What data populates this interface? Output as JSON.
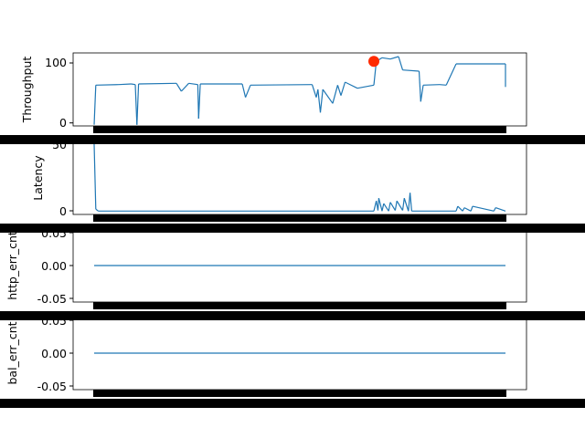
{
  "colors": {
    "line": "#1f77b4",
    "marker": "#ff2a00",
    "axes": "#000000",
    "background": "#ffffff"
  },
  "chart_data": [
    {
      "type": "line",
      "name": "throughput",
      "ylabel": "Throughput",
      "ylim": [
        -2,
        118
      ],
      "yticks": [
        0,
        100
      ],
      "grid": false,
      "x_range": [
        0,
        500
      ],
      "marker": {
        "x": 340,
        "y": 104
      },
      "segments": [
        {
          "x": [
            0,
            2
          ],
          "y": [
            0,
            65
          ]
        },
        {
          "x": [
            2,
            30
          ],
          "y": [
            65,
            66
          ]
        },
        {
          "x": [
            30,
            45
          ],
          "y": [
            66,
            67
          ]
        },
        {
          "x": [
            45,
            50
          ],
          "y": [
            67,
            66
          ]
        },
        {
          "x": [
            50,
            52
          ],
          "y": [
            66,
            0
          ]
        },
        {
          "x": [
            52,
            54
          ],
          "y": [
            0,
            67
          ]
        },
        {
          "x": [
            54,
            100
          ],
          "y": [
            67,
            68
          ]
        },
        {
          "x": [
            100,
            106
          ],
          "y": [
            68,
            55
          ]
        },
        {
          "x": [
            106,
            115
          ],
          "y": [
            55,
            68
          ]
        },
        {
          "x": [
            115,
            126
          ],
          "y": [
            68,
            66
          ]
        },
        {
          "x": [
            126,
            127
          ],
          "y": [
            66,
            10
          ]
        },
        {
          "x": [
            127,
            129
          ],
          "y": [
            10,
            67
          ]
        },
        {
          "x": [
            129,
            180
          ],
          "y": [
            67,
            67
          ]
        },
        {
          "x": [
            180,
            184
          ],
          "y": [
            67,
            45
          ]
        },
        {
          "x": [
            184,
            190
          ],
          "y": [
            45,
            65
          ]
        },
        {
          "x": [
            190,
            265
          ],
          "y": [
            65,
            66
          ]
        },
        {
          "x": [
            265,
            270
          ],
          "y": [
            66,
            45
          ]
        },
        {
          "x": [
            270,
            272
          ],
          "y": [
            45,
            58
          ]
        },
        {
          "x": [
            272,
            275
          ],
          "y": [
            58,
            20
          ]
        },
        {
          "x": [
            275,
            278
          ],
          "y": [
            20,
            58
          ]
        },
        {
          "x": [
            278,
            290
          ],
          "y": [
            58,
            35
          ]
        },
        {
          "x": [
            290,
            296
          ],
          "y": [
            35,
            65
          ]
        },
        {
          "x": [
            296,
            300
          ],
          "y": [
            65,
            48
          ]
        },
        {
          "x": [
            300,
            305
          ],
          "y": [
            48,
            70
          ]
        },
        {
          "x": [
            305,
            320
          ],
          "y": [
            70,
            60
          ]
        },
        {
          "x": [
            320,
            340
          ],
          "y": [
            60,
            65
          ]
        },
        {
          "x": [
            340,
            343
          ],
          "y": [
            65,
            104
          ]
        },
        {
          "x": [
            343,
            350
          ],
          "y": [
            104,
            110
          ]
        },
        {
          "x": [
            350,
            360
          ],
          "y": [
            110,
            108
          ]
        },
        {
          "x": [
            360,
            370
          ],
          "y": [
            108,
            112
          ]
        },
        {
          "x": [
            370,
            375
          ],
          "y": [
            112,
            90
          ]
        },
        {
          "x": [
            375,
            395
          ],
          "y": [
            90,
            88
          ]
        },
        {
          "x": [
            395,
            397
          ],
          "y": [
            88,
            38
          ]
        },
        {
          "x": [
            397,
            400
          ],
          "y": [
            38,
            65
          ]
        },
        {
          "x": [
            400,
            420
          ],
          "y": [
            65,
            66
          ]
        },
        {
          "x": [
            420,
            428
          ],
          "y": [
            66,
            65
          ]
        },
        {
          "x": [
            428,
            440
          ],
          "y": [
            65,
            100
          ]
        },
        {
          "x": [
            440,
            500
          ],
          "y": [
            100,
            100
          ]
        },
        {
          "x": [
            500,
            500
          ],
          "y": [
            100,
            62
          ]
        }
      ]
    },
    {
      "type": "line",
      "name": "latency",
      "ylabel": "Latency",
      "ylim": [
        -2,
        52
      ],
      "yticks": [
        0,
        50
      ],
      "grid": false,
      "x_range": [
        0,
        500
      ],
      "segments": [
        {
          "x": [
            0,
            2
          ],
          "y": [
            50,
            2
          ]
        },
        {
          "x": [
            2,
            5
          ],
          "y": [
            2,
            0.5
          ]
        },
        {
          "x": [
            5,
            280
          ],
          "y": [
            0.5,
            0.5
          ]
        },
        {
          "x": [
            280,
            340
          ],
          "y": [
            0.5,
            0.5
          ]
        },
        {
          "x": [
            340,
            343
          ],
          "y": [
            0.5,
            8
          ]
        },
        {
          "x": [
            343,
            345
          ],
          "y": [
            8,
            1
          ]
        },
        {
          "x": [
            345,
            346
          ],
          "y": [
            1,
            10
          ]
        },
        {
          "x": [
            346,
            350
          ],
          "y": [
            10,
            0.5
          ]
        },
        {
          "x": [
            350,
            352
          ],
          "y": [
            0.5,
            6
          ]
        },
        {
          "x": [
            352,
            358
          ],
          "y": [
            6,
            0.5
          ]
        },
        {
          "x": [
            358,
            360
          ],
          "y": [
            0.5,
            7
          ]
        },
        {
          "x": [
            360,
            366
          ],
          "y": [
            7,
            1
          ]
        },
        {
          "x": [
            366,
            368
          ],
          "y": [
            1,
            8
          ]
        },
        {
          "x": [
            368,
            375
          ],
          "y": [
            8,
            1
          ]
        },
        {
          "x": [
            375,
            377
          ],
          "y": [
            1,
            10
          ]
        },
        {
          "x": [
            377,
            382
          ],
          "y": [
            10,
            0.5
          ]
        },
        {
          "x": [
            382,
            384
          ],
          "y": [
            0.5,
            14
          ]
        },
        {
          "x": [
            384,
            386
          ],
          "y": [
            14,
            0.5
          ]
        },
        {
          "x": [
            386,
            440
          ],
          "y": [
            0.5,
            0.5
          ]
        },
        {
          "x": [
            440,
            442
          ],
          "y": [
            0.5,
            4
          ]
        },
        {
          "x": [
            442,
            448
          ],
          "y": [
            4,
            0.5
          ]
        },
        {
          "x": [
            448,
            450
          ],
          "y": [
            0.5,
            3
          ]
        },
        {
          "x": [
            450,
            458
          ],
          "y": [
            3,
            0.5
          ]
        },
        {
          "x": [
            458,
            460
          ],
          "y": [
            0.5,
            4
          ]
        },
        {
          "x": [
            460,
            486
          ],
          "y": [
            4,
            0.5
          ]
        },
        {
          "x": [
            486,
            488
          ],
          "y": [
            0.5,
            3
          ]
        },
        {
          "x": [
            488,
            500
          ],
          "y": [
            3,
            0.5
          ]
        }
      ]
    },
    {
      "type": "line",
      "name": "http_err_cnt",
      "ylabel": "http_err_cnt",
      "ylim": [
        -0.055,
        0.055
      ],
      "yticks": [
        "0.05",
        "0.00",
        "-0.05"
      ],
      "ytick_values": [
        0.05,
        0,
        -0.05
      ],
      "grid": false,
      "x_range": [
        0,
        500
      ],
      "segments": [
        {
          "x": [
            0,
            500
          ],
          "y": [
            0,
            0
          ]
        }
      ]
    },
    {
      "type": "line",
      "name": "bal_err_cnt",
      "ylabel": "bal_err_cnt",
      "ylim": [
        -0.055,
        0.055
      ],
      "yticks": [
        "0.05",
        "0.00",
        "-0.05"
      ],
      "ytick_values": [
        0.05,
        0,
        -0.05
      ],
      "grid": false,
      "x_range": [
        0,
        500
      ],
      "segments": [
        {
          "x": [
            0,
            500
          ],
          "y": [
            0,
            0
          ]
        }
      ]
    }
  ]
}
